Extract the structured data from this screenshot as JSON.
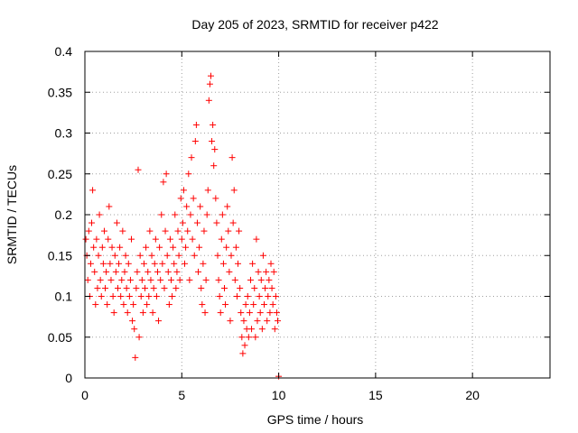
{
  "chart_data": {
    "type": "scatter",
    "title": "Day 205 of 2023, SRMTID for receiver p422",
    "xlabel": "GPS time / hours",
    "ylabel": "SRMTID / TECUs",
    "xlim": [
      0,
      24
    ],
    "ylim": [
      0,
      0.4
    ],
    "xticks": [
      0,
      5,
      10,
      15,
      20
    ],
    "xtick_labels": [
      "0",
      "5",
      "10",
      "15",
      "20"
    ],
    "yticks": [
      0,
      0.05,
      0.1,
      0.15,
      0.2,
      0.25,
      0.3,
      0.35,
      0.4
    ],
    "ytick_labels": [
      "0",
      "0.05",
      "0.1",
      "0.15",
      "0.2",
      "0.25",
      "0.3",
      "0.35",
      "0.4"
    ],
    "grid": true,
    "marker": "+",
    "color": "#ff0000",
    "series": [
      {
        "name": "SRMTID",
        "points": [
          [
            0.05,
            0.17
          ],
          [
            0.1,
            0.15
          ],
          [
            0.15,
            0.12
          ],
          [
            0.2,
            0.18
          ],
          [
            0.25,
            0.1
          ],
          [
            0.3,
            0.14
          ],
          [
            0.35,
            0.19
          ],
          [
            0.4,
            0.23
          ],
          [
            0.45,
            0.16
          ],
          [
            0.5,
            0.13
          ],
          [
            0.55,
            0.09
          ],
          [
            0.6,
            0.17
          ],
          [
            0.65,
            0.11
          ],
          [
            0.7,
            0.15
          ],
          [
            0.75,
            0.2
          ],
          [
            0.8,
            0.12
          ],
          [
            0.85,
            0.1
          ],
          [
            0.9,
            0.16
          ],
          [
            0.95,
            0.14
          ],
          [
            1.0,
            0.18
          ],
          [
            1.05,
            0.11
          ],
          [
            1.1,
            0.13
          ],
          [
            1.15,
            0.09
          ],
          [
            1.2,
            0.17
          ],
          [
            1.25,
            0.21
          ],
          [
            1.3,
            0.14
          ],
          [
            1.35,
            0.12
          ],
          [
            1.4,
            0.16
          ],
          [
            1.45,
            0.1
          ],
          [
            1.5,
            0.08
          ],
          [
            1.55,
            0.15
          ],
          [
            1.6,
            0.13
          ],
          [
            1.65,
            0.19
          ],
          [
            1.7,
            0.11
          ],
          [
            1.75,
            0.14
          ],
          [
            1.8,
            0.16
          ],
          [
            1.85,
            0.1
          ],
          [
            1.9,
            0.12
          ],
          [
            1.95,
            0.18
          ],
          [
            2.0,
            0.09
          ],
          [
            2.05,
            0.13
          ],
          [
            2.1,
            0.15
          ],
          [
            2.15,
            0.11
          ],
          [
            2.2,
            0.08
          ],
          [
            2.25,
            0.14
          ],
          [
            2.3,
            0.1
          ],
          [
            2.35,
            0.12
          ],
          [
            2.4,
            0.17
          ],
          [
            2.45,
            0.07
          ],
          [
            2.5,
            0.09
          ],
          [
            2.55,
            0.06
          ],
          [
            2.6,
            0.025
          ],
          [
            2.65,
            0.11
          ],
          [
            2.7,
            0.13
          ],
          [
            2.75,
            0.255
          ],
          [
            2.8,
            0.05
          ],
          [
            2.85,
            0.15
          ],
          [
            2.9,
            0.1
          ],
          [
            2.95,
            0.12
          ],
          [
            3.0,
            0.08
          ],
          [
            3.05,
            0.14
          ],
          [
            3.1,
            0.11
          ],
          [
            3.15,
            0.16
          ],
          [
            3.2,
            0.09
          ],
          [
            3.25,
            0.13
          ],
          [
            3.3,
            0.1
          ],
          [
            3.35,
            0.18
          ],
          [
            3.4,
            0.12
          ],
          [
            3.45,
            0.15
          ],
          [
            3.5,
            0.08
          ],
          [
            3.55,
            0.11
          ],
          [
            3.6,
            0.14
          ],
          [
            3.65,
            0.17
          ],
          [
            3.7,
            0.1
          ],
          [
            3.75,
            0.13
          ],
          [
            3.8,
            0.07
          ],
          [
            3.85,
            0.16
          ],
          [
            3.9,
            0.12
          ],
          [
            3.95,
            0.2
          ],
          [
            4.0,
            0.14
          ],
          [
            4.05,
            0.24
          ],
          [
            4.1,
            0.11
          ],
          [
            4.15,
            0.18
          ],
          [
            4.2,
            0.25
          ],
          [
            4.25,
            0.15
          ],
          [
            4.3,
            0.13
          ],
          [
            4.35,
            0.09
          ],
          [
            4.4,
            0.17
          ],
          [
            4.45,
            0.12
          ],
          [
            4.5,
            0.1
          ],
          [
            4.55,
            0.16
          ],
          [
            4.6,
            0.14
          ],
          [
            4.65,
            0.2
          ],
          [
            4.7,
            0.11
          ],
          [
            4.75,
            0.13
          ],
          [
            4.8,
            0.18
          ],
          [
            4.85,
            0.15
          ],
          [
            4.9,
            0.12
          ],
          [
            4.95,
            0.22
          ],
          [
            5.0,
            0.17
          ],
          [
            5.05,
            0.19
          ],
          [
            5.1,
            0.23
          ],
          [
            5.15,
            0.14
          ],
          [
            5.2,
            0.16
          ],
          [
            5.25,
            0.21
          ],
          [
            5.3,
            0.18
          ],
          [
            5.35,
            0.25
          ],
          [
            5.4,
            0.12
          ],
          [
            5.45,
            0.2
          ],
          [
            5.5,
            0.27
          ],
          [
            5.55,
            0.17
          ],
          [
            5.6,
            0.22
          ],
          [
            5.65,
            0.15
          ],
          [
            5.7,
            0.29
          ],
          [
            5.75,
            0.31
          ],
          [
            5.8,
            0.19
          ],
          [
            5.85,
            0.13
          ],
          [
            5.9,
            0.16
          ],
          [
            5.95,
            0.21
          ],
          [
            6.0,
            0.11
          ],
          [
            6.05,
            0.09
          ],
          [
            6.1,
            0.14
          ],
          [
            6.15,
            0.18
          ],
          [
            6.2,
            0.08
          ],
          [
            6.25,
            0.12
          ],
          [
            6.3,
            0.2
          ],
          [
            6.35,
            0.23
          ],
          [
            6.4,
            0.34
          ],
          [
            6.45,
            0.36
          ],
          [
            6.5,
            0.37
          ],
          [
            6.55,
            0.29
          ],
          [
            6.6,
            0.31
          ],
          [
            6.65,
            0.26
          ],
          [
            6.7,
            0.28
          ],
          [
            6.75,
            0.22
          ],
          [
            6.8,
            0.19
          ],
          [
            6.85,
            0.15
          ],
          [
            6.9,
            0.12
          ],
          [
            6.95,
            0.1
          ],
          [
            7.0,
            0.08
          ],
          [
            7.05,
            0.17
          ],
          [
            7.1,
            0.2
          ],
          [
            7.15,
            0.14
          ],
          [
            7.2,
            0.11
          ],
          [
            7.25,
            0.09
          ],
          [
            7.3,
            0.16
          ],
          [
            7.35,
            0.21
          ],
          [
            7.4,
            0.18
          ],
          [
            7.45,
            0.13
          ],
          [
            7.5,
            0.07
          ],
          [
            7.55,
            0.15
          ],
          [
            7.6,
            0.27
          ],
          [
            7.65,
            0.19
          ],
          [
            7.7,
            0.23
          ],
          [
            7.75,
            0.12
          ],
          [
            7.8,
            0.16
          ],
          [
            7.85,
            0.1
          ],
          [
            7.9,
            0.14
          ],
          [
            7.95,
            0.18
          ],
          [
            8.0,
            0.11
          ],
          [
            8.05,
            0.08
          ],
          [
            8.1,
            0.05
          ],
          [
            8.15,
            0.03
          ],
          [
            8.2,
            0.07
          ],
          [
            8.25,
            0.04
          ],
          [
            8.3,
            0.09
          ],
          [
            8.35,
            0.06
          ],
          [
            8.4,
            0.1
          ],
          [
            8.45,
            0.05
          ],
          [
            8.5,
            0.08
          ],
          [
            8.55,
            0.12
          ],
          [
            8.6,
            0.06
          ],
          [
            8.65,
            0.14
          ],
          [
            8.7,
            0.09
          ],
          [
            8.75,
            0.11
          ],
          [
            8.8,
            0.05
          ],
          [
            8.85,
            0.17
          ],
          [
            8.9,
            0.07
          ],
          [
            8.95,
            0.13
          ],
          [
            9.0,
            0.1
          ],
          [
            9.05,
            0.08
          ],
          [
            9.1,
            0.12
          ],
          [
            9.15,
            0.06
          ],
          [
            9.2,
            0.15
          ],
          [
            9.25,
            0.09
          ],
          [
            9.3,
            0.11
          ],
          [
            9.35,
            0.13
          ],
          [
            9.4,
            0.07
          ],
          [
            9.45,
            0.1
          ],
          [
            9.5,
            0.12
          ],
          [
            9.55,
            0.08
          ],
          [
            9.6,
            0.14
          ],
          [
            9.65,
            0.11
          ],
          [
            9.7,
            0.09
          ],
          [
            9.75,
            0.13
          ],
          [
            9.8,
            0.06
          ],
          [
            9.85,
            0.1
          ],
          [
            9.9,
            0.08
          ],
          [
            9.95,
            0.07
          ],
          [
            10.0,
            0.002
          ]
        ]
      }
    ]
  }
}
